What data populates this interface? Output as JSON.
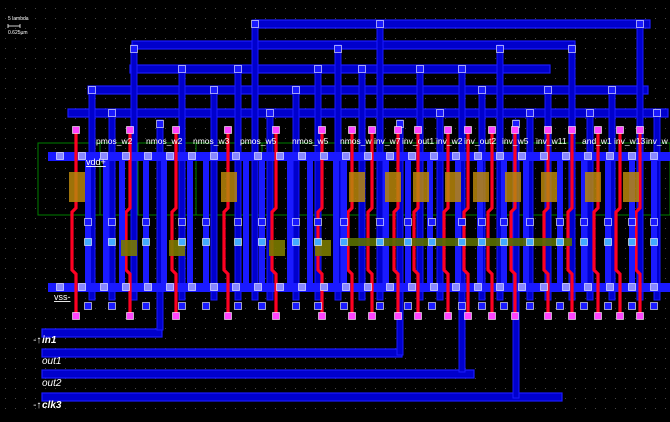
{
  "scale_bar": {
    "unit": "5 lambda",
    "value": "0.625µm"
  },
  "rails": {
    "vdd": "vdd+",
    "vss": "vss-"
  },
  "pins": [
    "in1",
    "out1",
    "out2",
    "clk3"
  ],
  "device_labels": [
    "pmos_w2",
    "nmos_w2",
    "nmos_w3",
    "pmos_w5",
    "nmos_w5",
    "nmos_w",
    "inv_w7",
    "inv_out1",
    "inv_w2",
    "inv_out2",
    "inv_w5",
    "inv_w11",
    "and_w1",
    "inv_w13",
    "inv_w"
  ],
  "contact_glyph": "o",
  "colors": {
    "background": "#000000",
    "metal1": "#1a1aff",
    "metal2": "#0000cc",
    "poly": "#ff0022",
    "diffusion": "#b8860b",
    "well": "#008000",
    "contact": "#ff44ff",
    "grid": "#555555"
  }
}
